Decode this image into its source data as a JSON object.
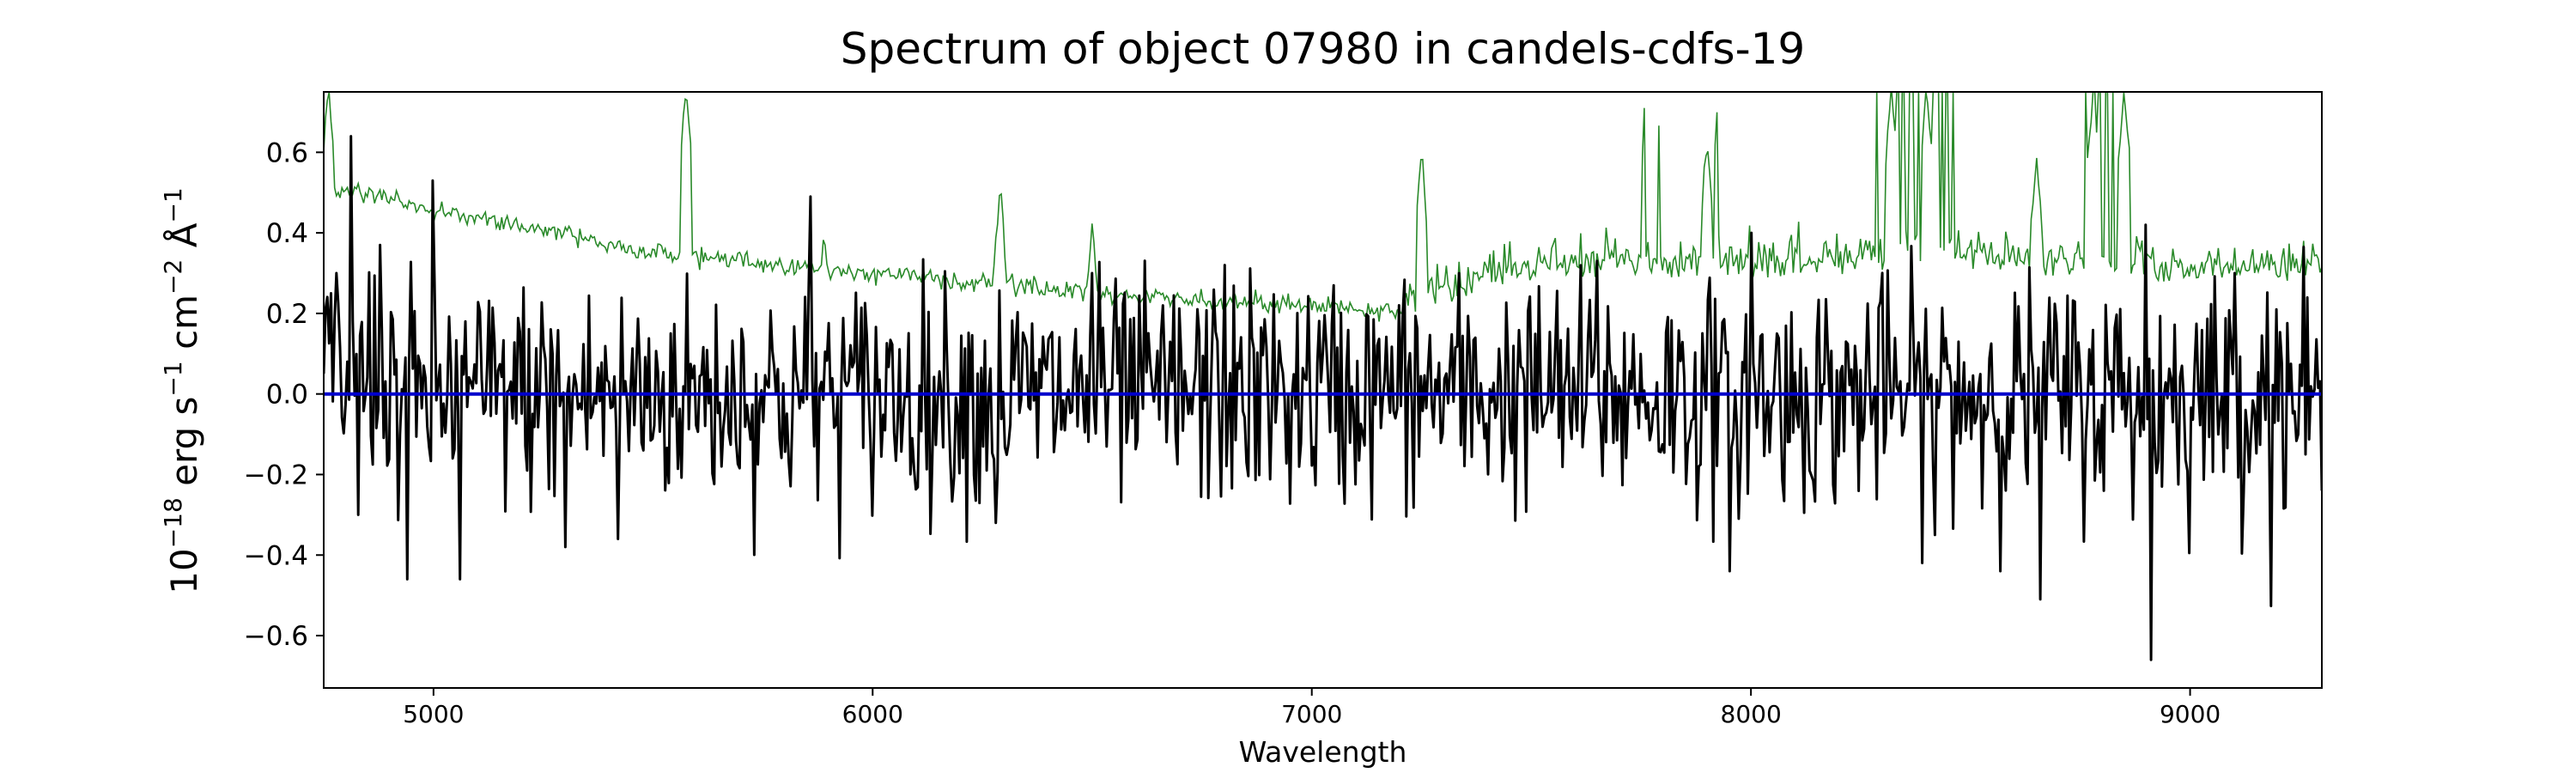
{
  "chart_data": {
    "type": "line",
    "title": "Spectrum of object 07980 in candels-cdfs-19",
    "xlabel": "Wavelength",
    "ylabel": {
      "prefix": "10",
      "prefix_exp": "−18",
      "erg": " erg s",
      "s_exp": "−1",
      "cm": " cm",
      "cm_exp": "−2",
      "ang": " Å",
      "ang_exp": "−1"
    },
    "xlim": [
      4750,
      9300
    ],
    "ylim": [
      -0.73,
      0.75
    ],
    "x_ticks": [
      5000,
      6000,
      7000,
      8000,
      9000
    ],
    "x_tick_labels": [
      "5000",
      "6000",
      "7000",
      "8000",
      "9000"
    ],
    "y_ticks": [
      -0.6,
      -0.4,
      -0.2,
      0.0,
      0.2,
      0.4,
      0.6
    ],
    "y_tick_labels": [
      "−0.6",
      "−0.4",
      "−0.2",
      "0.0",
      "0.2",
      "0.4",
      "0.6"
    ],
    "grid": false,
    "colors": {
      "flux": "#000000",
      "error": "#2a8a2a",
      "zero": "#0000cc"
    },
    "series": [
      {
        "key": "flux",
        "approx_std": 0.14,
        "points": [
          [
            4750,
            0.05
          ],
          [
            4780,
            0.3
          ],
          [
            4810,
            0.64
          ],
          [
            4830,
            -0.3
          ],
          [
            4880,
            0.37
          ],
          [
            4940,
            -0.46
          ],
          [
            5000,
            0.53
          ],
          [
            5060,
            -0.46
          ],
          [
            5300,
            -0.38
          ],
          [
            5420,
            -0.36
          ],
          [
            5860,
            0.49
          ],
          [
            6280,
            -0.32
          ],
          [
            6500,
            0.3
          ],
          [
            6800,
            0.32
          ],
          [
            7200,
            0.22
          ],
          [
            7650,
            0.33
          ],
          [
            7950,
            -0.44
          ],
          [
            8000,
            0.4
          ],
          [
            8420,
            -0.35
          ],
          [
            8660,
            -0.51
          ],
          [
            8900,
            0.42
          ],
          [
            8910,
            -0.66
          ],
          [
            9100,
            0.3
          ],
          [
            9300,
            -0.24
          ]
        ]
      },
      {
        "key": "error",
        "baseline": [
          [
            4750,
            0.52
          ],
          [
            5000,
            0.46
          ],
          [
            5500,
            0.35
          ],
          [
            6000,
            0.3
          ],
          [
            6500,
            0.25
          ],
          [
            7000,
            0.22
          ],
          [
            7200,
            0.2
          ],
          [
            7500,
            0.3
          ],
          [
            8000,
            0.3
          ],
          [
            8500,
            0.32
          ],
          [
            9000,
            0.28
          ],
          [
            9300,
            0.3
          ]
        ],
        "peaks": [
          [
            4760,
            0.75
          ],
          [
            5575,
            0.75
          ],
          [
            5890,
            0.38
          ],
          [
            6290,
            0.5
          ],
          [
            6500,
            0.42
          ],
          [
            7250,
            0.58
          ],
          [
            7900,
            0.62
          ],
          [
            8320,
            0.75
          ],
          [
            8400,
            0.75
          ],
          [
            8650,
            0.58
          ],
          [
            8780,
            0.75
          ],
          [
            8850,
            0.75
          ],
          [
            9280,
            0.38
          ]
        ]
      },
      {
        "key": "zero",
        "points": [
          [
            4750,
            0.0
          ],
          [
            9300,
            0.0
          ]
        ]
      }
    ]
  }
}
